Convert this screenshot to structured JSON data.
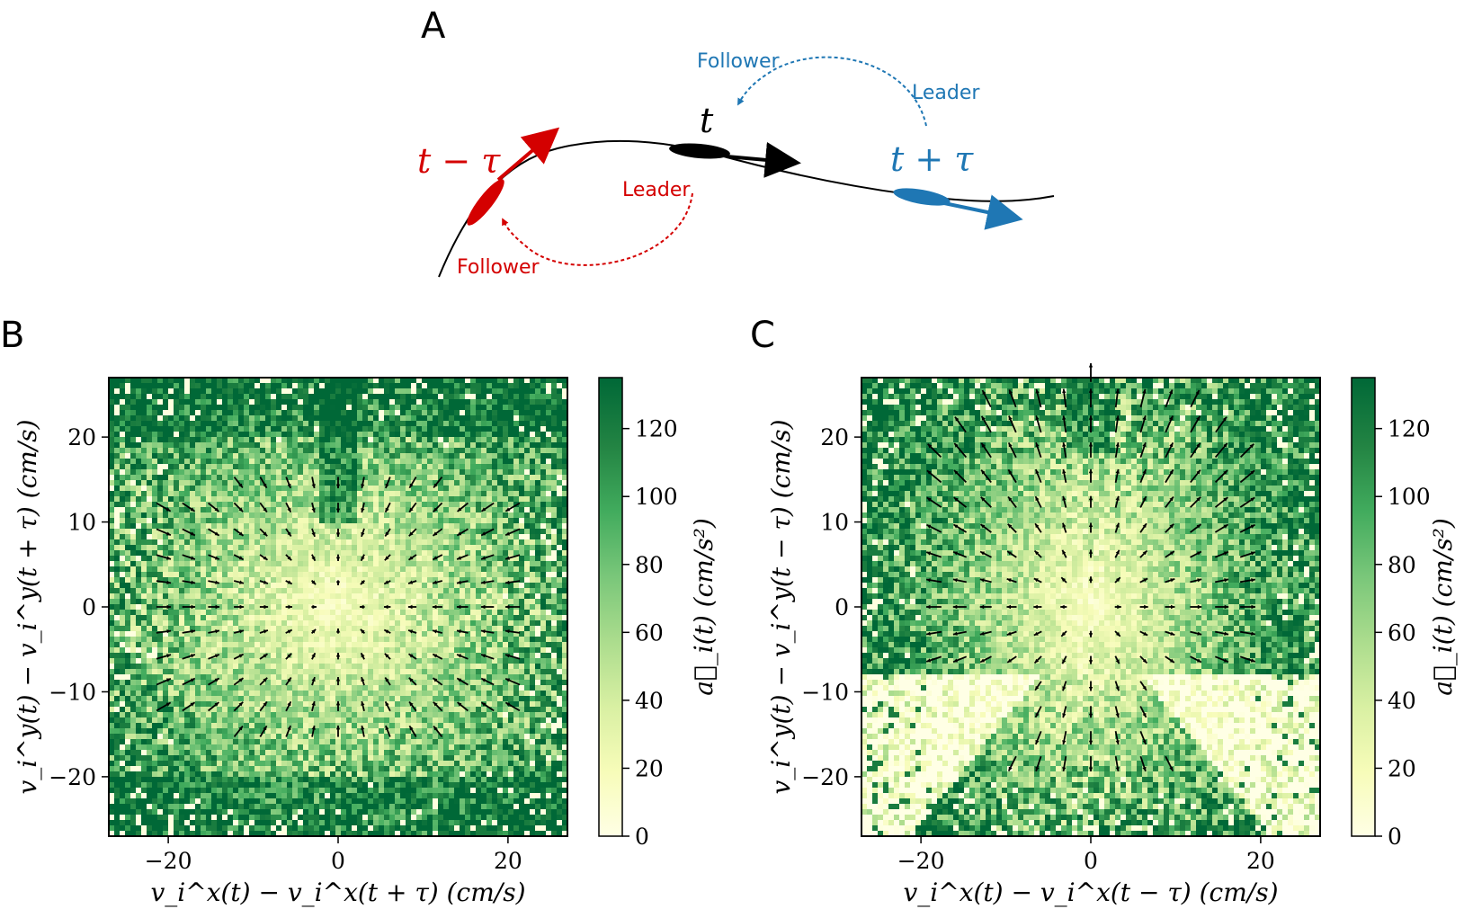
{
  "panel_labels": {
    "a": "A",
    "b": "B",
    "c": "C"
  },
  "diagram": {
    "t_label": "t",
    "t_minus_label": "t − τ",
    "t_plus_label": "t + τ",
    "red_leader": "Leader",
    "red_follower": "Follower",
    "blue_leader": "Leader",
    "blue_follower": "Follower",
    "colors": {
      "red": "#d40000",
      "blue": "#1f77b4",
      "black": "#000000"
    }
  },
  "chart_data": [
    {
      "type": "heatmap",
      "panel": "B",
      "xlabel": "v_i^x(t) − v_i^x(t + τ) (cm/s)",
      "ylabel": "v_i^y(t) − v_i^y(t + τ) (cm/s)",
      "colorbar_label": "a⃗_i(t) (cm/s²)",
      "xlim": [
        -27,
        27
      ],
      "ylim": [
        -27,
        27
      ],
      "xticks": [
        -20,
        0,
        20
      ],
      "yticks": [
        -20,
        -10,
        0,
        10,
        20
      ],
      "cbar_range": [
        0,
        135
      ],
      "cbar_ticks": [
        0,
        20,
        40,
        60,
        80,
        100,
        120
      ],
      "colormap": [
        "#ffffe5",
        "#f7fcb9",
        "#d9f0a3",
        "#addd8e",
        "#78c679",
        "#41ab5d",
        "#238443",
        "#006837"
      ],
      "overlay": "quiver: acceleration vectors pointing toward the origin",
      "quiver_extent": {
        "x": [
          -22,
          22
        ],
        "y": [
          -17,
          17
        ]
      }
    },
    {
      "type": "heatmap",
      "panel": "C",
      "xlabel": "v_i^x(t) − v_i^x(t − τ) (cm/s)",
      "ylabel": "v_i^y(t) − v_i^y(t − τ) (cm/s)",
      "colorbar_label": "a⃗_i(t) (cm/s²)",
      "xlim": [
        -27,
        27
      ],
      "ylim": [
        -27,
        27
      ],
      "xticks": [
        -20,
        0,
        20
      ],
      "yticks": [
        -20,
        -10,
        0,
        10,
        20
      ],
      "cbar_range": [
        0,
        135
      ],
      "cbar_ticks": [
        0,
        20,
        40,
        60,
        80,
        100,
        120
      ],
      "colormap": [
        "#ffffe5",
        "#f7fcb9",
        "#d9f0a3",
        "#addd8e",
        "#78c679",
        "#41ab5d",
        "#238443",
        "#006837"
      ],
      "overlay": "quiver: acceleration vectors pointing away from the origin",
      "quiver_extent": {
        "x": [
          -19,
          19
        ],
        "y": [
          -19,
          27
        ]
      }
    }
  ],
  "tick_text": {
    "x": [
      "−20",
      "0",
      "20"
    ],
    "y": [
      "−20",
      "−10",
      "0",
      "10",
      "20"
    ],
    "cbar": [
      "0",
      "20",
      "40",
      "60",
      "80",
      "100",
      "120"
    ]
  }
}
